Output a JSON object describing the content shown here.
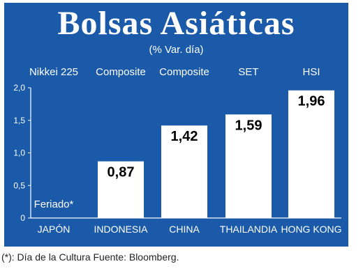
{
  "chart_data": {
    "type": "bar",
    "title": "Bolsas Asiáticas",
    "subtitle": "(% Var. día)",
    "index_labels": [
      "Nikkei 225",
      "Composite",
      "Composite",
      "SET",
      "HSI"
    ],
    "categories": [
      "JAPÓN",
      "INDONESIA",
      "CHINA",
      "THAILANDIA",
      "HONG KONG"
    ],
    "values": [
      null,
      0.87,
      1.42,
      1.59,
      1.96
    ],
    "value_labels": [
      "",
      "0,87",
      "1,42",
      "1,59",
      "1,96"
    ],
    "annotation": "Feriado*",
    "ylim": [
      0,
      2.0
    ],
    "yticks": [
      0,
      0.5,
      1.0,
      1.5,
      2.0
    ],
    "ytick_labels": [
      "0",
      "0,5",
      "1,0",
      "1,5",
      "2,0"
    ],
    "grid": false,
    "colors": {
      "panel": "#1a5aa8",
      "bar": "#ffffff"
    }
  },
  "footnote": "(*): Día de la Cultura Fuente: Bloomberg."
}
